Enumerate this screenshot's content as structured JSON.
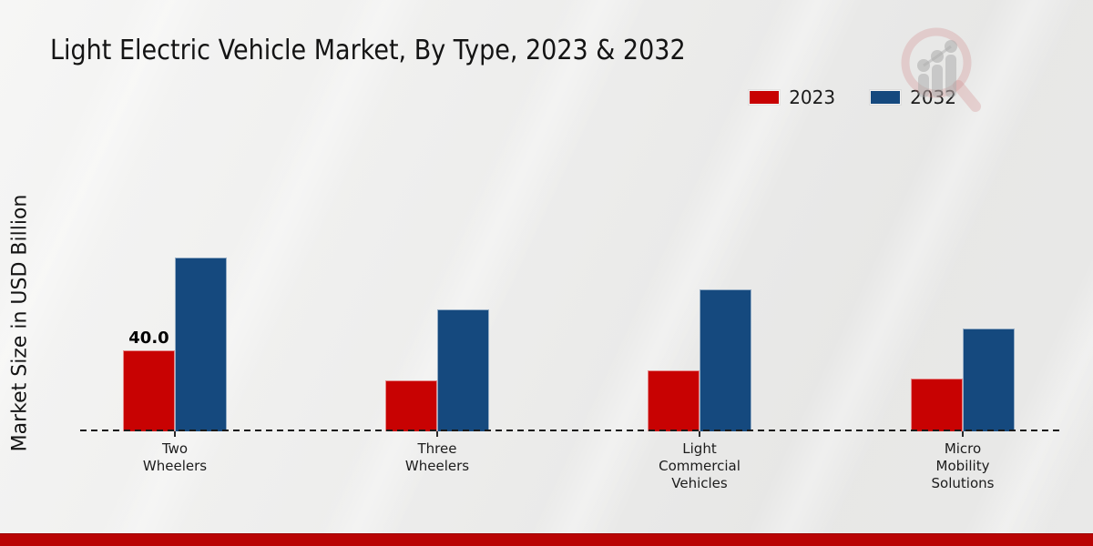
{
  "title": "Light Electric Vehicle Market, By Type, 2023 & 2032",
  "y_axis_label": "Market Size in USD Billion",
  "legend": {
    "items": [
      {
        "label": "2023",
        "color": "#c80202"
      },
      {
        "label": "2032",
        "color": "#15497e"
      }
    ]
  },
  "chart_data": {
    "type": "bar",
    "title": "Light Electric Vehicle Market, By Type, 2023 & 2032",
    "ylabel": "Market Size in USD Billion",
    "categories": [
      "Two Wheelers",
      "Three Wheelers",
      "Light Commercial Vehicles",
      "Micro Mobility Solutions"
    ],
    "series": [
      {
        "name": "2023",
        "color": "#c80202",
        "values": [
          40.0,
          25.0,
          30.0,
          26.0
        ]
      },
      {
        "name": "2032",
        "color": "#15497e",
        "values": [
          86.0,
          60.0,
          70.0,
          51.0
        ]
      }
    ],
    "annotations": [
      {
        "series": "2023",
        "category": "Two Wheelers",
        "text": "40.0"
      }
    ],
    "ylim": [
      0,
      90
    ],
    "grid": false,
    "legend_position": "top-right",
    "baseline_style": "dashed",
    "y_ticks_visible": false
  },
  "colors": {
    "series_2023": "#c80202",
    "series_2032": "#15497e",
    "axis_line": "#1a1a1a",
    "footer_bar": "#b90404",
    "watermark_pink": "rgba(210,140,140,0.35)",
    "watermark_gray": "rgba(168,168,168,0.55)"
  },
  "watermark": {
    "name": "magnifier-bar-chart-logo"
  }
}
